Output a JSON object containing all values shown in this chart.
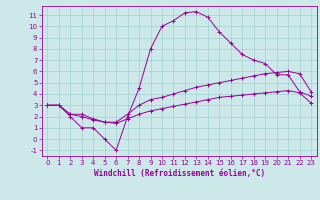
{
  "xlabel": "Windchill (Refroidissement éolien,°C)",
  "background_color": "#cce8e8",
  "line_color": "#990099",
  "grid_color": "#99cccc",
  "xlim": [
    -0.5,
    23.5
  ],
  "ylim": [
    -1.5,
    11.8
  ],
  "xticks": [
    0,
    1,
    2,
    3,
    4,
    5,
    6,
    7,
    8,
    9,
    10,
    11,
    12,
    13,
    14,
    15,
    16,
    17,
    18,
    19,
    20,
    21,
    22,
    23
  ],
  "yticks": [
    -1,
    0,
    1,
    2,
    3,
    4,
    5,
    6,
    7,
    8,
    9,
    10,
    11
  ],
  "line1_x": [
    0,
    1,
    2,
    3,
    4,
    5,
    6,
    7,
    8,
    9,
    10,
    11,
    12,
    13,
    14,
    15,
    16,
    17,
    18,
    19,
    20,
    21,
    22,
    23
  ],
  "line1_y": [
    3,
    3,
    2,
    1,
    1,
    0,
    -1,
    2,
    4.5,
    8,
    10,
    10.5,
    11.2,
    11.3,
    10.8,
    9.5,
    8.5,
    7.5,
    7,
    6.7,
    5.7,
    5.7,
    4.2,
    3.8
  ],
  "line2_x": [
    0,
    1,
    2,
    3,
    4,
    5,
    6,
    7,
    8,
    9,
    10,
    11,
    12,
    13,
    14,
    15,
    16,
    17,
    18,
    19,
    20,
    21,
    22,
    23
  ],
  "line2_y": [
    3,
    3,
    2.2,
    2.2,
    1.8,
    1.5,
    1.5,
    2.2,
    3.0,
    3.5,
    3.7,
    4.0,
    4.3,
    4.6,
    4.8,
    5.0,
    5.2,
    5.4,
    5.6,
    5.8,
    5.9,
    6.0,
    5.8,
    4.2
  ],
  "line3_x": [
    0,
    1,
    2,
    3,
    4,
    5,
    6,
    7,
    8,
    9,
    10,
    11,
    12,
    13,
    14,
    15,
    16,
    17,
    18,
    19,
    20,
    21,
    22,
    23
  ],
  "line3_y": [
    3,
    3,
    2.2,
    2.0,
    1.7,
    1.5,
    1.4,
    1.8,
    2.2,
    2.5,
    2.7,
    2.9,
    3.1,
    3.3,
    3.5,
    3.7,
    3.8,
    3.9,
    4.0,
    4.1,
    4.2,
    4.3,
    4.1,
    3.2
  ],
  "xlabel_fontsize": 5.5,
  "tick_fontsize": 5.0,
  "linewidth": 0.7,
  "markersize": 2.5
}
